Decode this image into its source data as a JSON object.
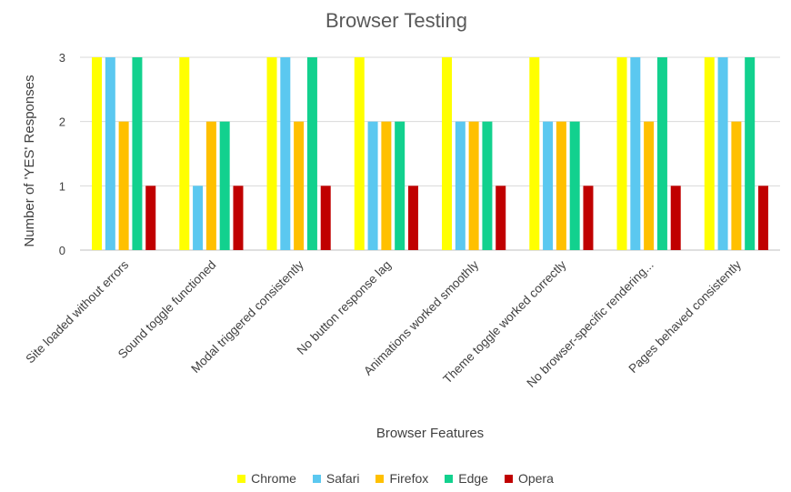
{
  "chart_data": {
    "type": "bar",
    "title": "Browser Testing",
    "xlabel": "Browser Features",
    "ylabel": "Number of 'YES' Responses",
    "ylim": [
      0,
      3
    ],
    "yticks": [
      "0",
      "1",
      "2",
      "3"
    ],
    "grid": true,
    "legend_position": "bottom",
    "categories": [
      "Site loaded without errors",
      "Sound toggle functioned",
      "Modal triggered consistently",
      "No button response lag",
      "Animations worked smoothly",
      "Theme toggle worked correctly",
      "No browser-specific rendering...",
      "Pages behaved consistently"
    ],
    "series": [
      {
        "name": "Chrome",
        "color": "#FFFF00",
        "values": [
          3,
          3,
          3,
          3,
          3,
          3,
          3,
          3
        ]
      },
      {
        "name": "Safari",
        "color": "#5BC8F0",
        "values": [
          3,
          1,
          3,
          2,
          2,
          2,
          3,
          3
        ]
      },
      {
        "name": "Firefox",
        "color": "#FFC000",
        "values": [
          2,
          2,
          2,
          2,
          2,
          2,
          2,
          2
        ]
      },
      {
        "name": "Edge",
        "color": "#12D18E",
        "values": [
          3,
          2,
          3,
          2,
          2,
          2,
          3,
          3
        ]
      },
      {
        "name": "Opera",
        "color": "#C00000",
        "values": [
          1,
          1,
          1,
          1,
          1,
          1,
          1,
          1
        ]
      }
    ]
  }
}
